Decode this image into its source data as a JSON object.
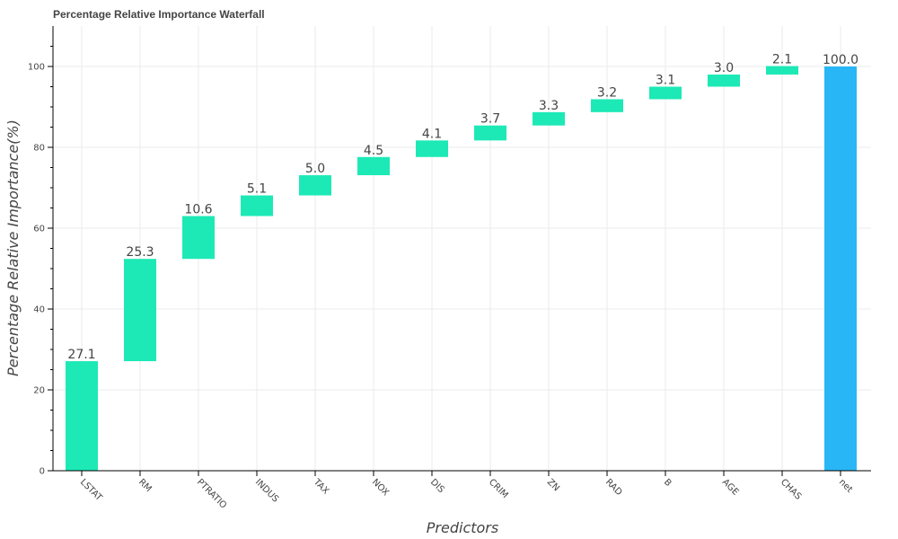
{
  "chart_data": {
    "type": "bar",
    "subtype": "waterfall",
    "title": "Percentage Relative Importance Waterfall",
    "xlabel": "Predictors",
    "ylabel": "Percentage Relative Importance(%)",
    "categories": [
      "LSTAT",
      "RM",
      "PTRATIO",
      "INDUS",
      "TAX",
      "NOX",
      "DIS",
      "CRIM",
      "ZN",
      "RAD",
      "B",
      "AGE",
      "CHAS",
      "net"
    ],
    "values": [
      27.1,
      25.3,
      10.6,
      5.1,
      5.0,
      4.5,
      4.1,
      3.7,
      3.3,
      3.2,
      3.1,
      3.0,
      2.1,
      100.0
    ],
    "value_labels": [
      "27.1",
      "25.3",
      "10.6",
      "5.1",
      "5.0",
      "4.5",
      "4.1",
      "3.7",
      "3.3",
      "3.2",
      "3.1",
      "3.0",
      "2.1",
      "100.0"
    ],
    "ylim": [
      0,
      110
    ],
    "yticks": [
      0,
      20,
      40,
      60,
      80,
      100
    ],
    "grid": true,
    "colors": {
      "increment": "#1de9b6",
      "total": "#29b6f6"
    }
  }
}
